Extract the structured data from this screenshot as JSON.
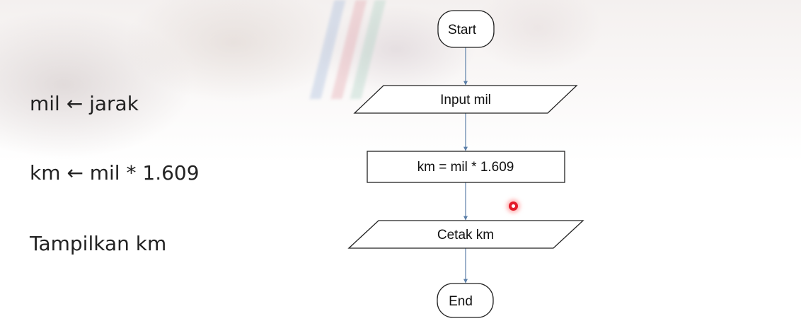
{
  "pseudocode": {
    "line1": "mil ← jarak",
    "line2": "km ← mil * 1.609",
    "line3": "Tampilkan km"
  },
  "flowchart": {
    "start": "Start",
    "input": "Input mil",
    "process": "km = mil * 1.609",
    "output": "Cetak km",
    "end": "End"
  },
  "colors": {
    "connector": "#5b7fa8",
    "shape_stroke": "#222222",
    "cursor": "#e31b2a"
  }
}
